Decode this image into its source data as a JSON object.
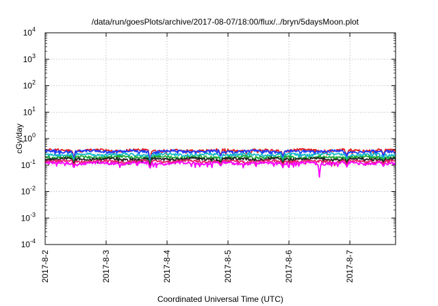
{
  "chart_data": {
    "type": "line",
    "title": "/data/run/goesPlots/archive/2017-08-07/18:00/flux/../bryn/5daysMoon.plot",
    "xlabel": "Coordinated Universal Time (UTC)",
    "ylabel": "cGy/day",
    "yscale": "log",
    "ylim": [
      0.0001,
      10000
    ],
    "xlim": [
      "2017-08-02 00:00",
      "2017-08-07 18:00"
    ],
    "grid": true,
    "x_ticks": [
      "2017-8-2",
      "2017-8-3",
      "2017-8-4",
      "2017-8-5",
      "2017-8-6",
      "2017-8-7"
    ],
    "y_ticks": [
      {
        "base": "10",
        "exp": "-4",
        "value": 0.0001
      },
      {
        "base": "10",
        "exp": "-3",
        "value": 0.001
      },
      {
        "base": "10",
        "exp": "-2",
        "value": 0.01
      },
      {
        "base": "10",
        "exp": "-1",
        "value": 0.1
      },
      {
        "base": "10",
        "exp": "0",
        "value": 1
      },
      {
        "base": "10",
        "exp": "1",
        "value": 10
      },
      {
        "base": "10",
        "exp": "2",
        "value": 100
      },
      {
        "base": "10",
        "exp": "3",
        "value": 1000
      },
      {
        "base": "10",
        "exp": "4",
        "value": 10000
      }
    ],
    "series": [
      {
        "color": "#e41a1c",
        "baseline": 0.36,
        "dips": [
          [
            0.47,
            0.16
          ],
          [
            1.72,
            0.12
          ],
          [
            2.88,
            0.22
          ],
          [
            3.9,
            0.2
          ],
          [
            4.95,
            0.22
          ],
          [
            5.55,
            0.24
          ]
        ]
      },
      {
        "color": "#1e3cff",
        "baseline": 0.33,
        "dips": [
          [
            0.47,
            0.14
          ],
          [
            1.72,
            0.1
          ],
          [
            2.88,
            0.2
          ],
          [
            3.9,
            0.18
          ],
          [
            4.95,
            0.2
          ],
          [
            5.55,
            0.22
          ]
        ]
      },
      {
        "color": "#17b8c8",
        "baseline": 0.25,
        "dips": [
          [
            0.47,
            0.13
          ],
          [
            1.72,
            0.1
          ],
          [
            2.88,
            0.17
          ],
          [
            3.9,
            0.15
          ],
          [
            4.95,
            0.17
          ],
          [
            5.55,
            0.18
          ]
        ]
      },
      {
        "color": "#1fa83a",
        "baseline": 0.2,
        "dips": [
          [
            0.47,
            0.12
          ],
          [
            1.72,
            0.09
          ],
          [
            2.88,
            0.14
          ],
          [
            3.9,
            0.13
          ],
          [
            4.95,
            0.14
          ],
          [
            5.55,
            0.15
          ]
        ]
      },
      {
        "color": "#222222",
        "baseline": 0.17,
        "dips": [
          [
            0.47,
            0.11
          ],
          [
            1.72,
            0.08
          ],
          [
            2.88,
            0.12
          ],
          [
            3.9,
            0.11
          ],
          [
            4.95,
            0.12
          ],
          [
            5.55,
            0.13
          ]
        ]
      },
      {
        "color": "#e0206a",
        "baseline": 0.14,
        "dips": [
          [
            0.47,
            0.09
          ],
          [
            1.72,
            0.07
          ],
          [
            2.88,
            0.1
          ],
          [
            3.9,
            0.1
          ],
          [
            4.95,
            0.1
          ],
          [
            5.55,
            0.11
          ]
        ]
      },
      {
        "color": "#ff00ff",
        "baseline": 0.118,
        "dips": [
          [
            0.47,
            0.075
          ],
          [
            1.72,
            0.07
          ],
          [
            2.88,
            0.09
          ],
          [
            3.9,
            0.08
          ],
          [
            4.5,
            0.035
          ],
          [
            4.95,
            0.085
          ],
          [
            5.55,
            0.09
          ]
        ]
      }
    ]
  }
}
